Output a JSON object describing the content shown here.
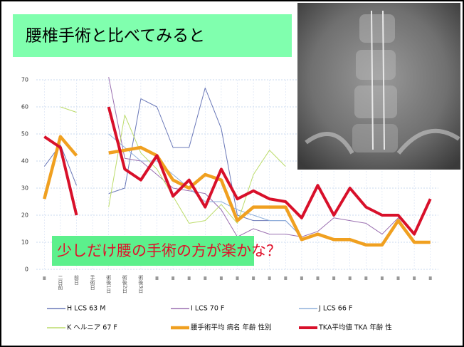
{
  "chart_data": {
    "type": "line",
    "title": "腰椎手術と比べてみると",
    "annotation": "少しだけ腰の手術の方が楽かな？",
    "categories": [
      null,
      "二日前",
      "前日",
      "手術日",
      "術後1日",
      "術後2日",
      "術後3日",
      null,
      null,
      null,
      null,
      null,
      null,
      null,
      null,
      null,
      null,
      null,
      null,
      null,
      null,
      null,
      null,
      null,
      null
    ],
    "series": [
      {
        "name": "H LCS 63 M",
        "color": "#6a78b8",
        "values": [
          38,
          46,
          31,
          null,
          28,
          30,
          63,
          60,
          45,
          45,
          67,
          52,
          20,
          18,
          18,
          18,
          12,
          null,
          null,
          null,
          null,
          null,
          null,
          null,
          null
        ]
      },
      {
        "name": "I LCS 70 F",
        "color": "#9a6fb0",
        "values": [
          null,
          null,
          null,
          null,
          71,
          41,
          40,
          35,
          30,
          29,
          28,
          22,
          12,
          15,
          13,
          13,
          12,
          14,
          19,
          18,
          17,
          13,
          19,
          10,
          10
        ]
      },
      {
        "name": "J LCS 66 F",
        "color": "#8fb0dc",
        "values": [
          null,
          null,
          null,
          null,
          50,
          45,
          40,
          40,
          35,
          30,
          25,
          25,
          22,
          20,
          18,
          18,
          12,
          null,
          null,
          null,
          null,
          null,
          null,
          null,
          null
        ]
      },
      {
        "name": "K ヘルニア 67 F",
        "color": "#bcdc6a",
        "values": [
          null,
          60,
          58,
          null,
          23,
          57,
          43,
          37,
          27,
          17,
          18,
          24,
          17,
          35,
          44,
          38,
          null,
          null,
          null,
          null,
          null,
          null,
          null,
          null,
          null
        ]
      },
      {
        "name": "腰手術平均 病名 年齢 性別",
        "color": "#f0a020",
        "values": [
          26,
          49,
          42,
          null,
          43,
          44,
          45,
          42,
          33,
          30,
          35,
          33,
          18,
          23,
          23,
          23,
          11,
          13,
          11,
          11,
          9,
          9,
          18,
          10,
          10
        ]
      },
      {
        "name": "TKA平均値 TKA 年齢 性",
        "color": "#d8102a",
        "values": [
          49,
          45,
          20,
          null,
          60,
          37,
          33,
          42,
          27,
          33,
          23,
          37,
          26,
          29,
          26,
          25,
          19,
          31,
          20,
          30,
          23,
          20,
          20,
          13,
          26
        ]
      }
    ],
    "ylim": [
      0,
      70
    ],
    "yticks": [
      0,
      10,
      20,
      30,
      40,
      50,
      60,
      70
    ],
    "grid": true
  }
}
